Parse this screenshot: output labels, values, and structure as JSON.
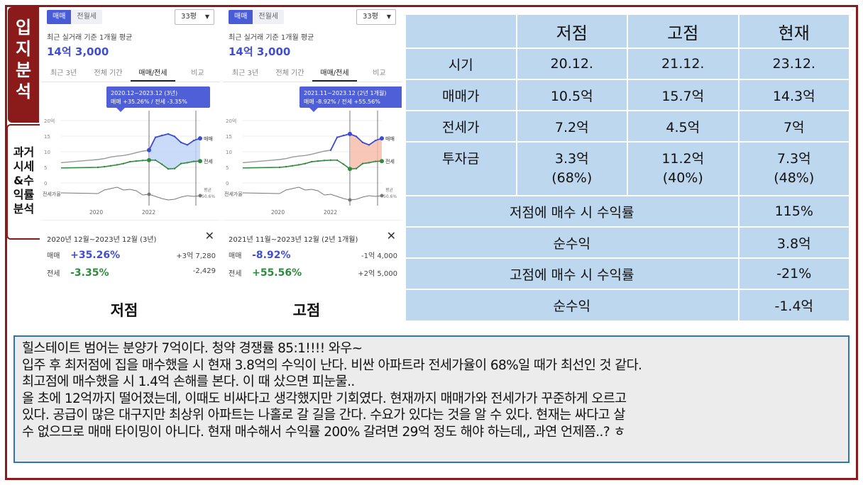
{
  "side_tabs": {
    "active_label": "입지분석",
    "inactive_label": "과거시세&수익률분석"
  },
  "panels": [
    {
      "segment": {
        "sale": "매매",
        "rent": "전월세"
      },
      "size_select": "33평",
      "avg_label": "최근 실거래 기준 1개월 평균",
      "avg_value": "14억 3,000",
      "tabs": [
        "최근 3년",
        "전체 기간",
        "매매/전세",
        "비교"
      ],
      "active_tab": 2,
      "tooltip": {
        "period": "2020.12~2023.12 (3년)",
        "change": "매매 +35.26%  /  전세 -3.35%"
      },
      "detail": {
        "range": "2020년 12월~2023년 12월 (3년)",
        "close": "✕",
        "sale_label": "매매",
        "sale_pct": "+35.26%",
        "sale_amt": "+3억 7,280",
        "rent_label": "전세",
        "rent_pct": "-3.35%",
        "rent_amt": "-2,429"
      },
      "caption": "저점"
    },
    {
      "segment": {
        "sale": "매매",
        "rent": "전월세"
      },
      "size_select": "33평",
      "avg_label": "최근 실거래 기준 1개월 평균",
      "avg_value": "14억 3,000",
      "tabs": [
        "최근 3년",
        "전체 기간",
        "매매/전세",
        "비교"
      ],
      "active_tab": 2,
      "tooltip": {
        "period": "2021.11~2023.12 (2년 1개월)",
        "change": "매매 -8.92%  /  전세 +55.56%"
      },
      "detail": {
        "range": "2021년 11월~2023년 12월 (2년 1개월)",
        "close": "✕",
        "sale_label": "매매",
        "sale_pct": "-8.92%",
        "sale_amt": "-1억 4,000",
        "rent_label": "전세",
        "rent_pct": "+55.56%",
        "rent_amt": "+2억 5,000"
      },
      "caption": "고점"
    }
  ],
  "chart_data": [
    {
      "type": "line",
      "y_ticks": [
        "20억",
        "15",
        "10",
        "5",
        "0"
      ],
      "x_ticks": [
        "2020",
        "2022"
      ],
      "ylim": [
        0,
        20
      ],
      "series": [
        {
          "name": "매매",
          "values": [
            7.5,
            7.8,
            8.3,
            8.6,
            8.8,
            9.2,
            9.7,
            10.2,
            10.5,
            14.6,
            15.2,
            15.7,
            14.9,
            13.0,
            12.2,
            13.6,
            14.3
          ]
        },
        {
          "name": "전세",
          "values": [
            5.0,
            5.2,
            5.5,
            5.8,
            6.2,
            6.8,
            7.0,
            7.2,
            7.3,
            7.3,
            6.0,
            4.5,
            4.6,
            6.2,
            6.5,
            6.9,
            7.0
          ]
        }
      ],
      "line_labels": {
        "sale": "매매",
        "rent": "전세",
        "ratio": "전세가율",
        "avg": "평균",
        "ratio_val": "50.6%"
      },
      "colors": {
        "sale": "#3b4bd6",
        "rent": "#2e8b3e",
        "history": "#9a9a9a",
        "fill": "#bcd2f7"
      }
    },
    {
      "type": "line",
      "y_ticks": [
        "20억",
        "15",
        "10",
        "5",
        "0"
      ],
      "x_ticks": [
        "2020",
        "2022"
      ],
      "ylim": [
        0,
        20
      ],
      "series": [
        {
          "name": "매매",
          "values": [
            7.5,
            7.8,
            8.3,
            8.6,
            8.8,
            9.2,
            9.7,
            10.2,
            10.5,
            14.6,
            15.2,
            15.7,
            14.9,
            13.0,
            12.2,
            13.6,
            14.3
          ]
        },
        {
          "name": "전세",
          "values": [
            5.0,
            5.2,
            5.5,
            5.8,
            6.2,
            6.8,
            7.0,
            7.2,
            7.3,
            7.3,
            6.0,
            4.5,
            4.6,
            6.2,
            6.5,
            6.9,
            7.0
          ]
        }
      ],
      "line_labels": {
        "sale": "매매",
        "rent": "전세",
        "ratio": "전세가율",
        "avg": "평균",
        "ratio_val": "50.6%"
      },
      "colors": {
        "sale": "#3b4bd6",
        "rent": "#2e8b3e",
        "history": "#9a9a9a",
        "fill": "#f6b9a6"
      }
    }
  ],
  "table": {
    "headers": [
      "",
      "저점",
      "고점",
      "현재"
    ],
    "rows": [
      {
        "label": "시기",
        "values": [
          "20.12.",
          "21.12.",
          "23.12."
        ]
      },
      {
        "label": "매매가",
        "values": [
          "10.5억",
          "15.7억",
          "14.3억"
        ]
      },
      {
        "label": "전세가",
        "values": [
          "7.2억",
          "4.5억",
          "7억"
        ]
      },
      {
        "label": "투자금",
        "values": [
          "3.3억",
          "11.2억",
          "7.3억"
        ],
        "sub": [
          "(68%)",
          "(40%)",
          "(48%)"
        ]
      }
    ],
    "summary": [
      {
        "label": "저점에 매수 시 수익률",
        "value": "115%"
      },
      {
        "label": "순수익",
        "value": "3.8억"
      },
      {
        "label": "고점에 매수 시 수익률",
        "value": "-21%"
      },
      {
        "label": "순수익",
        "value": "-1.4억"
      }
    ]
  },
  "note_lines": [
    "힐스테이트 범어는 분양가 7억이다. 청약 경쟁률 85:1!!!! 와우~",
    "입주 후 최저점에 집을 매수했을 시 현재 3.8억의 수익이 난다. 비싼 아파트라 전세가율이 68%일 때가 최선인 것 같다.",
    "최고점에 매수했을 시 1.4억 손해를 본다. 이 때 샀으면 피눈물..",
    "올 초에 12억까지 떨어졌는데, 이때도 비싸다고 생각했지만 기회였다. 현재까지 매매가와 전세가가 꾸준하게 오르고",
    "있다. 공급이 많은 대구지만 최상위 아파트는 나홀로 갈 길을 간다. 수요가 있다는 것을 알 수 있다. 현재는 싸다고 살",
    "수 없으므로 매매 타이밍이 아니다. 현재 매수해서 수익률 200% 갈려면 29억 정도 해야 하는데,, 과연 언제쯤..? ㅎ"
  ]
}
